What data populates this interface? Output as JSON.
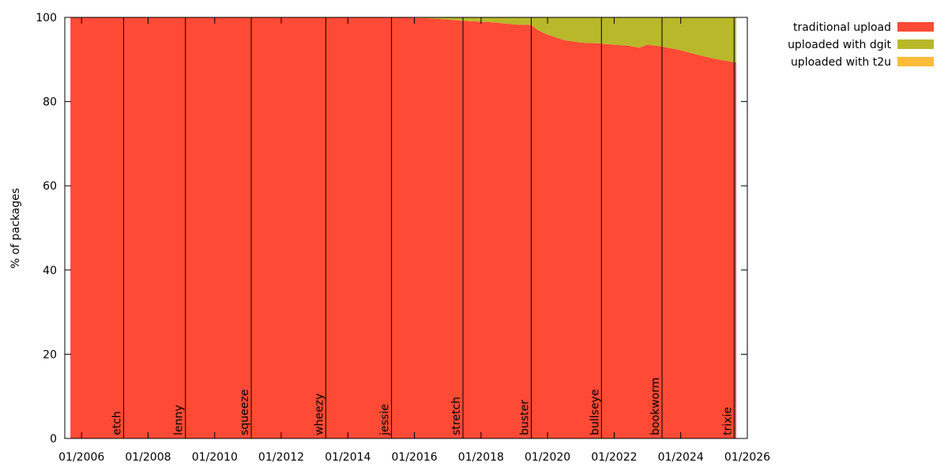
{
  "chart_data": {
    "type": "area",
    "ylabel": "% of packages",
    "ylim": [
      0,
      100
    ],
    "xlim": [
      "2005-07-01",
      "2026-01-01"
    ],
    "y_ticks": [
      0,
      20,
      40,
      60,
      80,
      100
    ],
    "x_ticks": [
      {
        "date": "2006-01-01",
        "label": "01/2006"
      },
      {
        "date": "2008-01-01",
        "label": "01/2008"
      },
      {
        "date": "2010-01-01",
        "label": "01/2010"
      },
      {
        "date": "2012-01-01",
        "label": "01/2012"
      },
      {
        "date": "2014-01-01",
        "label": "01/2014"
      },
      {
        "date": "2016-01-01",
        "label": "01/2016"
      },
      {
        "date": "2018-01-01",
        "label": "01/2018"
      },
      {
        "date": "2020-01-01",
        "label": "01/2020"
      },
      {
        "date": "2022-01-01",
        "label": "01/2022"
      },
      {
        "date": "2024-01-01",
        "label": "01/2024"
      },
      {
        "date": "2026-01-01",
        "label": "01/2026"
      }
    ],
    "releases": [
      {
        "name": "etch",
        "date": "2007-04-08"
      },
      {
        "name": "lenny",
        "date": "2009-02-14"
      },
      {
        "name": "squeeze",
        "date": "2011-02-06"
      },
      {
        "name": "wheezy",
        "date": "2013-05-04"
      },
      {
        "name": "jessie",
        "date": "2015-04-25"
      },
      {
        "name": "stretch",
        "date": "2017-06-17"
      },
      {
        "name": "buster",
        "date": "2019-07-06"
      },
      {
        "name": "bullseye",
        "date": "2021-08-14"
      },
      {
        "name": "bookworm",
        "date": "2023-06-10"
      },
      {
        "name": "trixie",
        "date": "2025-08-09"
      }
    ],
    "legend_position": "top-right, outside plot",
    "series": [
      {
        "name": "traditional upload",
        "color": "#ff4a36",
        "points": [
          [
            "2005-09-01",
            100
          ],
          [
            "2015-06-01",
            100
          ],
          [
            "2016-06-01",
            99.8
          ],
          [
            "2017-01-01",
            99.5
          ],
          [
            "2017-06-01",
            99.2
          ],
          [
            "2018-01-01",
            99.0
          ],
          [
            "2018-06-01",
            98.8
          ],
          [
            "2019-01-01",
            98.3
          ],
          [
            "2019-07-01",
            98.2
          ],
          [
            "2019-10-01",
            96.8
          ],
          [
            "2020-01-01",
            95.9
          ],
          [
            "2020-07-01",
            94.6
          ],
          [
            "2021-01-01",
            94.0
          ],
          [
            "2021-08-01",
            93.8
          ],
          [
            "2022-01-01",
            93.5
          ],
          [
            "2022-06-01",
            93.3
          ],
          [
            "2022-10-01",
            92.8
          ],
          [
            "2023-01-01",
            93.5
          ],
          [
            "2023-06-01",
            93.1
          ],
          [
            "2024-01-01",
            92.2
          ],
          [
            "2024-06-01",
            91.3
          ],
          [
            "2025-01-01",
            90.2
          ],
          [
            "2025-06-01",
            89.6
          ],
          [
            "2025-09-01",
            89.3
          ]
        ]
      },
      {
        "name": "uploaded with dgit",
        "color": "#b8b82a",
        "points": [
          [
            "2005-09-01",
            0
          ],
          [
            "2015-06-01",
            0
          ],
          [
            "2016-06-01",
            0.2
          ],
          [
            "2017-01-01",
            0.5
          ],
          [
            "2017-06-01",
            0.8
          ],
          [
            "2018-01-01",
            1.0
          ],
          [
            "2018-06-01",
            1.2
          ],
          [
            "2019-01-01",
            1.7
          ],
          [
            "2019-07-01",
            1.8
          ],
          [
            "2019-10-01",
            3.2
          ],
          [
            "2020-01-01",
            4.1
          ],
          [
            "2020-07-01",
            5.4
          ],
          [
            "2021-01-01",
            6.0
          ],
          [
            "2021-08-01",
            6.2
          ],
          [
            "2022-01-01",
            6.5
          ],
          [
            "2022-06-01",
            6.7
          ],
          [
            "2022-10-01",
            7.2
          ],
          [
            "2023-01-01",
            6.5
          ],
          [
            "2023-06-01",
            6.9
          ],
          [
            "2024-01-01",
            7.8
          ],
          [
            "2024-06-01",
            8.7
          ],
          [
            "2025-01-01",
            9.8
          ],
          [
            "2025-06-01",
            10.4
          ],
          [
            "2025-09-01",
            10.7
          ]
        ]
      },
      {
        "name": "uploaded with t2u",
        "color": "#fbbc3a",
        "points": [
          [
            "2005-09-01",
            0
          ],
          [
            "2025-09-01",
            0
          ]
        ]
      }
    ]
  }
}
